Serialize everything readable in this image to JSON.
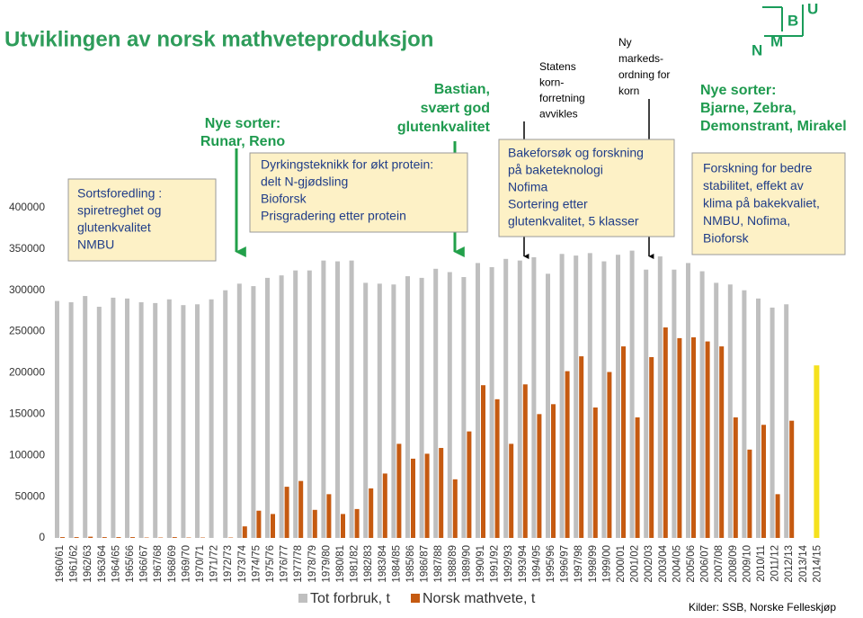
{
  "chart_data": {
    "type": "bar",
    "title": "Utviklingen av norsk mathveteproduksjon",
    "source": "Kilder: SSB, Norske Felleskjøp",
    "categories": [
      "1960/61",
      "1961/62",
      "1962/63",
      "1963/64",
      "1964/65",
      "1965/66",
      "1966/67",
      "1967/68",
      "1968/69",
      "1969/70",
      "1970/71",
      "1971/72",
      "1972/73",
      "1973/74",
      "1974/75",
      "1975/76",
      "1976/77",
      "1977/78",
      "1978/79",
      "1979/80",
      "1980/81",
      "1981/82",
      "1982/83",
      "1983/84",
      "1984/85",
      "1985/86",
      "1986/87",
      "1987/88",
      "1988/89",
      "1989/90",
      "1990/91",
      "1991/92",
      "1992/93",
      "1993/94",
      "1994/95",
      "1995/96",
      "1996/97",
      "1997/98",
      "1998/99",
      "1999/00",
      "2000/01",
      "2001/02",
      "2002/03",
      "2003/04",
      "2004/05",
      "2005/06",
      "2006/07",
      "2007/08",
      "2008/09",
      "2009/10",
      "2010/11",
      "2011/12",
      "2012/13",
      "2013/14",
      "2014/15"
    ],
    "series": [
      {
        "name": "Tot forbruk, t",
        "color": "#bfbfbf",
        "values": [
          287000,
          285500,
          293000,
          280000,
          291000,
          290000,
          285500,
          284500,
          289000,
          282000,
          283000,
          289000,
          300000,
          308000,
          305000,
          315000,
          318000,
          324000,
          324000,
          336000,
          335000,
          336000,
          309000,
          308000,
          307000,
          317000,
          315000,
          326000,
          322000,
          316000,
          333000,
          328000,
          338000,
          336000,
          340000,
          320000,
          344000,
          342000,
          345000,
          335000,
          343000,
          348000,
          325000,
          341000,
          325000,
          333000,
          323000,
          309000,
          307000,
          300000,
          290000,
          279000,
          283000,
          null,
          null
        ]
      },
      {
        "name": "Norsk mathvete, t",
        "color": "#c55a11",
        "values": [
          1000,
          1000,
          1500,
          1000,
          1000,
          1000,
          500,
          500,
          1000,
          500,
          500,
          0,
          500,
          14000,
          33000,
          29000,
          62000,
          69000,
          34000,
          53000,
          29000,
          35000,
          60000,
          78000,
          114000,
          96000,
          102000,
          109000,
          71000,
          129000,
          185000,
          168000,
          114000,
          186000,
          150000,
          162000,
          202000,
          220000,
          158000,
          201000,
          232000,
          146000,
          219000,
          255000,
          242000,
          243000,
          238000,
          232000,
          146000,
          107000,
          137000,
          53000,
          142000,
          null,
          null
        ]
      },
      {
        "color": "#f5e11e",
        "values": [
          null,
          null,
          null,
          null,
          null,
          null,
          null,
          null,
          null,
          null,
          null,
          null,
          null,
          null,
          null,
          null,
          null,
          null,
          null,
          null,
          null,
          null,
          null,
          null,
          null,
          null,
          null,
          null,
          null,
          null,
          null,
          null,
          null,
          null,
          null,
          null,
          null,
          null,
          null,
          null,
          null,
          null,
          null,
          null,
          null,
          null,
          null,
          null,
          null,
          null,
          null,
          null,
          null,
          null,
          209000
        ]
      }
    ],
    "ylim": [
      0,
      450000
    ],
    "yticks": [
      0,
      50000,
      100000,
      150000,
      200000,
      250000,
      300000,
      350000,
      400000
    ],
    "annotations": [
      {
        "lines": [
          "Sortsforedling :",
          "spiretreghet og",
          "glutenkvalitet",
          "NMBU"
        ]
      },
      {
        "lines": [
          "Nye sorter:",
          "Runar, Reno"
        ]
      },
      {
        "lines": [
          "Dyrkingsteknikk for økt protein:",
          "delt N-gjødsling",
          "Bioforsk",
          "Prisgradering etter protein"
        ]
      },
      {
        "lines": [
          "Bastian,",
          "svært god",
          "glutenkvalitet"
        ]
      },
      {
        "lines": [
          "Statens",
          "korn-",
          "forretning",
          "avvikles"
        ]
      },
      {
        "lines": [
          "Bakeforsøk og forskning",
          "på baketeknologi",
          "Nofima",
          "Sortering etter",
          "glutenkvalitet, 5 klasser"
        ]
      },
      {
        "lines": [
          "Ny",
          "markeds-",
          "ordning for",
          "korn"
        ]
      },
      {
        "lines": [
          "Nye sorter:",
          "Bjarne, Zebra,",
          "Demonstrant, Mirakel"
        ]
      },
      {
        "lines": [
          "Forskning for bedre",
          "stabilitet, effekt av",
          "klima på bakekvaliet,",
          "NMBU, Nofima,",
          "Bioforsk"
        ]
      }
    ]
  },
  "logo": [
    "N",
    "M",
    "B",
    "U"
  ]
}
